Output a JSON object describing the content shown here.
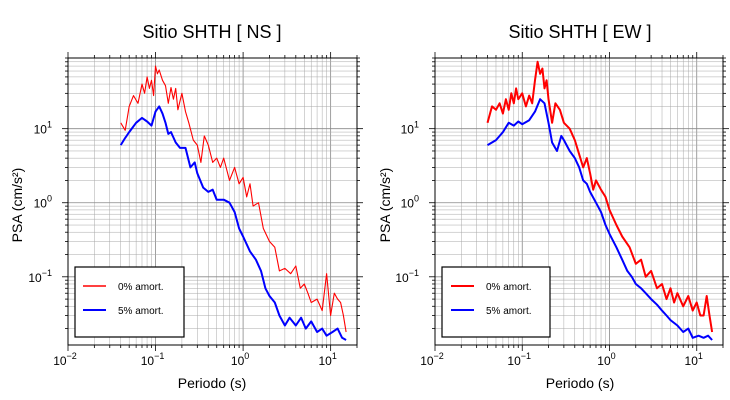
{
  "panels": [
    {
      "title": "Sitio SHTH [ NS ]",
      "xlabel": "Periodo (s)",
      "ylabel": "PSA (cm/s²)",
      "legend": [
        "0% amort.",
        "5% amort."
      ]
    },
    {
      "title": "Sitio SHTH [ EW ]",
      "xlabel": "Periodo (s)",
      "ylabel": "PSA (cm/s²)",
      "legend": [
        "0% amort.",
        "5% amort."
      ]
    }
  ],
  "ticks": {
    "x": [
      {
        "base": "10",
        "exp": "−2"
      },
      {
        "base": "10",
        "exp": "−1"
      },
      {
        "base": "10",
        "exp": "0"
      },
      {
        "base": "10",
        "exp": "1"
      }
    ],
    "y": [
      {
        "base": "10",
        "exp": "−1"
      },
      {
        "base": "10",
        "exp": "0"
      },
      {
        "base": "10",
        "exp": "1"
      }
    ]
  },
  "colors": {
    "damping0": "#ff0000",
    "damping5": "#0000ff"
  },
  "chart_data": [
    {
      "type": "line",
      "title": "Sitio SHTH [ NS ]",
      "xlabel": "Periodo (s)",
      "ylabel": "PSA (cm/s²)",
      "xscale": "log",
      "yscale": "log",
      "xlim": [
        0.01,
        20
      ],
      "ylim": [
        0.012,
        90
      ],
      "grid": true,
      "legend_position": "bottom-left",
      "series": [
        {
          "name": "0% amort.",
          "color": "#ff0000",
          "points": [
            [
              0.04,
              12
            ],
            [
              0.045,
              9.5
            ],
            [
              0.05,
              20
            ],
            [
              0.056,
              28
            ],
            [
              0.063,
              22
            ],
            [
              0.07,
              40
            ],
            [
              0.075,
              30
            ],
            [
              0.08,
              50
            ],
            [
              0.085,
              35
            ],
            [
              0.09,
              45
            ],
            [
              0.095,
              28
            ],
            [
              0.1,
              70
            ],
            [
              0.105,
              55
            ],
            [
              0.11,
              62
            ],
            [
              0.12,
              45
            ],
            [
              0.13,
              38
            ],
            [
              0.14,
              22
            ],
            [
              0.15,
              36
            ],
            [
              0.16,
              25
            ],
            [
              0.17,
              35
            ],
            [
              0.18,
              18
            ],
            [
              0.2,
              30
            ],
            [
              0.22,
              17
            ],
            [
              0.24,
              12
            ],
            [
              0.27,
              7
            ],
            [
              0.3,
              6
            ],
            [
              0.33,
              3.5
            ],
            [
              0.36,
              8
            ],
            [
              0.4,
              6
            ],
            [
              0.45,
              3.5
            ],
            [
              0.5,
              4
            ],
            [
              0.55,
              3
            ],
            [
              0.6,
              4
            ],
            [
              0.7,
              2
            ],
            [
              0.8,
              3
            ],
            [
              0.9,
              1.8
            ],
            [
              1.0,
              2.2
            ],
            [
              1.1,
              1.2
            ],
            [
              1.2,
              1.8
            ],
            [
              1.3,
              0.9
            ],
            [
              1.5,
              1
            ],
            [
              1.7,
              0.45
            ],
            [
              2.0,
              0.3
            ],
            [
              2.3,
              0.25
            ],
            [
              2.6,
              0.12
            ],
            [
              3.0,
              0.13
            ],
            [
              3.5,
              0.11
            ],
            [
              4.0,
              0.14
            ],
            [
              4.5,
              0.07
            ],
            [
              5.0,
              0.08
            ],
            [
              5.5,
              0.06
            ],
            [
              6.0,
              0.045
            ],
            [
              7.0,
              0.05
            ],
            [
              8.0,
              0.035
            ],
            [
              9.0,
              0.11
            ],
            [
              10.0,
              0.03
            ],
            [
              11.0,
              0.06
            ],
            [
              12.0,
              0.05
            ],
            [
              13.0,
              0.045
            ],
            [
              14.0,
              0.03
            ],
            [
              15.0,
              0.018
            ]
          ]
        },
        {
          "name": "5% amort.",
          "color": "#0000ff",
          "points": [
            [
              0.04,
              6
            ],
            [
              0.045,
              7.5
            ],
            [
              0.05,
              9
            ],
            [
              0.06,
              12
            ],
            [
              0.07,
              14
            ],
            [
              0.08,
              12.5
            ],
            [
              0.09,
              11
            ],
            [
              0.1,
              17
            ],
            [
              0.11,
              20
            ],
            [
              0.12,
              16
            ],
            [
              0.13,
              12
            ],
            [
              0.14,
              8.5
            ],
            [
              0.15,
              9
            ],
            [
              0.17,
              6.5
            ],
            [
              0.19,
              5.5
            ],
            [
              0.22,
              5.5
            ],
            [
              0.25,
              3
            ],
            [
              0.28,
              3.5
            ],
            [
              0.3,
              2.5
            ],
            [
              0.35,
              1.6
            ],
            [
              0.4,
              1.4
            ],
            [
              0.45,
              1.5
            ],
            [
              0.5,
              1.1
            ],
            [
              0.6,
              1.1
            ],
            [
              0.7,
              1.0
            ],
            [
              0.8,
              0.75
            ],
            [
              0.9,
              0.45
            ],
            [
              1.0,
              0.35
            ],
            [
              1.2,
              0.22
            ],
            [
              1.4,
              0.17
            ],
            [
              1.6,
              0.12
            ],
            [
              1.8,
              0.07
            ],
            [
              2.0,
              0.055
            ],
            [
              2.3,
              0.045
            ],
            [
              2.6,
              0.03
            ],
            [
              3.0,
              0.022
            ],
            [
              3.4,
              0.028
            ],
            [
              4.0,
              0.022
            ],
            [
              4.6,
              0.028
            ],
            [
              5.2,
              0.02
            ],
            [
              6.0,
              0.025
            ],
            [
              7.0,
              0.018
            ],
            [
              8.0,
              0.02
            ],
            [
              9.0,
              0.016
            ],
            [
              10.5,
              0.018
            ],
            [
              12.0,
              0.02
            ],
            [
              13.5,
              0.015
            ],
            [
              15.0,
              0.014
            ]
          ]
        }
      ]
    },
    {
      "type": "line",
      "title": "Sitio SHTH [ EW ]",
      "xlabel": "Periodo (s)",
      "ylabel": "PSA (cm/s²)",
      "xscale": "log",
      "yscale": "log",
      "xlim": [
        0.01,
        20
      ],
      "ylim": [
        0.012,
        90
      ],
      "grid": true,
      "legend_position": "bottom-left",
      "series": [
        {
          "name": "0% amort.",
          "color": "#ff0000",
          "points": [
            [
              0.04,
              12
            ],
            [
              0.045,
              20
            ],
            [
              0.05,
              18
            ],
            [
              0.055,
              22
            ],
            [
              0.06,
              16
            ],
            [
              0.065,
              25
            ],
            [
              0.07,
              18
            ],
            [
              0.075,
              30
            ],
            [
              0.08,
              22
            ],
            [
              0.085,
              35
            ],
            [
              0.09,
              25
            ],
            [
              0.1,
              30
            ],
            [
              0.11,
              20
            ],
            [
              0.12,
              28
            ],
            [
              0.13,
              22
            ],
            [
              0.14,
              45
            ],
            [
              0.15,
              80
            ],
            [
              0.16,
              55
            ],
            [
              0.17,
              65
            ],
            [
              0.18,
              35
            ],
            [
              0.19,
              45
            ],
            [
              0.2,
              25
            ],
            [
              0.22,
              12
            ],
            [
              0.24,
              22
            ],
            [
              0.27,
              18
            ],
            [
              0.3,
              12
            ],
            [
              0.35,
              10
            ],
            [
              0.4,
              7
            ],
            [
              0.45,
              4.5
            ],
            [
              0.5,
              3
            ],
            [
              0.55,
              4
            ],
            [
              0.6,
              2.5
            ],
            [
              0.65,
              1.5
            ],
            [
              0.7,
              2
            ],
            [
              0.8,
              1.5
            ],
            [
              0.9,
              1.2
            ],
            [
              1.0,
              0.8
            ],
            [
              1.2,
              0.5
            ],
            [
              1.4,
              0.35
            ],
            [
              1.7,
              0.25
            ],
            [
              2.0,
              0.15
            ],
            [
              2.3,
              0.17
            ],
            [
              2.6,
              0.1
            ],
            [
              3.0,
              0.12
            ],
            [
              3.5,
              0.07
            ],
            [
              4.0,
              0.08
            ],
            [
              4.5,
              0.05
            ],
            [
              5.0,
              0.07
            ],
            [
              5.5,
              0.045
            ],
            [
              6.0,
              0.06
            ],
            [
              7.0,
              0.04
            ],
            [
              8.0,
              0.055
            ],
            [
              9.0,
              0.035
            ],
            [
              10.0,
              0.045
            ],
            [
              11.0,
              0.03
            ],
            [
              12.0,
              0.03
            ],
            [
              13.0,
              0.055
            ],
            [
              14.0,
              0.03
            ],
            [
              15.0,
              0.018
            ]
          ]
        },
        {
          "name": "5% amort.",
          "color": "#0000ff",
          "points": [
            [
              0.04,
              6
            ],
            [
              0.05,
              7
            ],
            [
              0.06,
              9
            ],
            [
              0.07,
              12
            ],
            [
              0.08,
              11
            ],
            [
              0.09,
              12.5
            ],
            [
              0.1,
              11.5
            ],
            [
              0.12,
              13
            ],
            [
              0.14,
              17
            ],
            [
              0.16,
              25
            ],
            [
              0.18,
              22
            ],
            [
              0.2,
              12
            ],
            [
              0.22,
              6.5
            ],
            [
              0.25,
              5
            ],
            [
              0.28,
              8
            ],
            [
              0.3,
              7
            ],
            [
              0.35,
              5
            ],
            [
              0.4,
              4
            ],
            [
              0.45,
              3
            ],
            [
              0.5,
              2
            ],
            [
              0.55,
              1.8
            ],
            [
              0.6,
              1.4
            ],
            [
              0.7,
              1
            ],
            [
              0.8,
              0.75
            ],
            [
              0.9,
              0.5
            ],
            [
              1.0,
              0.38
            ],
            [
              1.2,
              0.25
            ],
            [
              1.4,
              0.17
            ],
            [
              1.6,
              0.12
            ],
            [
              1.8,
              0.1
            ],
            [
              2.0,
              0.08
            ],
            [
              2.3,
              0.07
            ],
            [
              2.6,
              0.06
            ],
            [
              3.0,
              0.05
            ],
            [
              3.5,
              0.042
            ],
            [
              4.0,
              0.035
            ],
            [
              4.5,
              0.03
            ],
            [
              5.0,
              0.026
            ],
            [
              6.0,
              0.022
            ],
            [
              7.0,
              0.018
            ],
            [
              8.0,
              0.02
            ],
            [
              9.0,
              0.015
            ],
            [
              10.5,
              0.016
            ],
            [
              12.0,
              0.015
            ],
            [
              13.5,
              0.016
            ],
            [
              15.0,
              0.014
            ]
          ]
        }
      ]
    }
  ]
}
